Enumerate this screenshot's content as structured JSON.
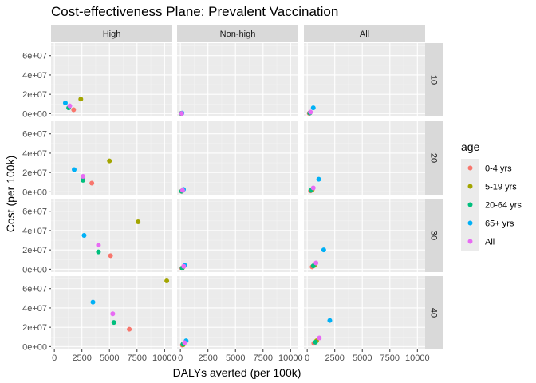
{
  "title": "Cost-effectiveness Plane: Prevalent Vaccination",
  "xlabel": "DALYs averted (per 100k)",
  "ylabel": "Cost (per 100k)",
  "legend": {
    "title": "age",
    "items": [
      {
        "label": "0-4 yrs",
        "color": "#F8766D"
      },
      {
        "label": "5-19 yrs",
        "color": "#A3A500"
      },
      {
        "label": "20-64 yrs",
        "color": "#00BF7D"
      },
      {
        "label": "65+ yrs",
        "color": "#00B0F6"
      },
      {
        "label": "All",
        "color": "#E76BF3"
      }
    ]
  },
  "chart_data": {
    "type": "scatter",
    "facet_columns": [
      "High",
      "Non-high",
      "All"
    ],
    "facet_rows": [
      "10",
      "20",
      "30",
      "40"
    ],
    "xlim": [
      -300,
      10700
    ],
    "ylim": [
      -3000000,
      73000000
    ],
    "x_ticks": [
      0,
      2500,
      5000,
      7500,
      10000
    ],
    "y_ticks": [
      0,
      20000000,
      40000000,
      60000000
    ],
    "y_tick_labels": [
      "0e+00",
      "2e+07",
      "4e+07",
      "6e+07"
    ],
    "grid": true,
    "legend_position": "right",
    "series": [
      {
        "name": "0-4 yrs",
        "color": "#F8766D",
        "points": [
          {
            "col": "High",
            "row": "10",
            "x": 1750,
            "y": 4000000
          },
          {
            "col": "Non-high",
            "row": "10",
            "x": 60,
            "y": 150000
          },
          {
            "col": "All",
            "row": "10",
            "x": 180,
            "y": 300000
          },
          {
            "col": "High",
            "row": "20",
            "x": 3400,
            "y": 9000000
          },
          {
            "col": "Non-high",
            "row": "20",
            "x": 100,
            "y": 500000
          },
          {
            "col": "All",
            "row": "20",
            "x": 300,
            "y": 1000000
          },
          {
            "col": "High",
            "row": "30",
            "x": 5100,
            "y": 14000000
          },
          {
            "col": "Non-high",
            "row": "30",
            "x": 130,
            "y": 1000000
          },
          {
            "col": "All",
            "row": "30",
            "x": 450,
            "y": 2500000
          },
          {
            "col": "High",
            "row": "40",
            "x": 6800,
            "y": 18000000
          },
          {
            "col": "Non-high",
            "row": "40",
            "x": 180,
            "y": 1500000
          },
          {
            "col": "All",
            "row": "40",
            "x": 600,
            "y": 3500000
          }
        ]
      },
      {
        "name": "5-19 yrs",
        "color": "#A3A500",
        "points": [
          {
            "col": "High",
            "row": "10",
            "x": 2400,
            "y": 15000000
          },
          {
            "col": "Non-high",
            "row": "10",
            "x": 100,
            "y": 300000
          },
          {
            "col": "All",
            "row": "10",
            "x": 250,
            "y": 900000
          },
          {
            "col": "High",
            "row": "20",
            "x": 5000,
            "y": 32000000
          },
          {
            "col": "Non-high",
            "row": "20",
            "x": 150,
            "y": 1000000
          },
          {
            "col": "All",
            "row": "20",
            "x": 450,
            "y": 2000000
          },
          {
            "col": "High",
            "row": "30",
            "x": 7600,
            "y": 49000000
          },
          {
            "col": "Non-high",
            "row": "30",
            "x": 200,
            "y": 1500000
          },
          {
            "col": "All",
            "row": "30",
            "x": 650,
            "y": 4000000
          },
          {
            "col": "High",
            "row": "40",
            "x": 10200,
            "y": 68000000
          },
          {
            "col": "Non-high",
            "row": "40",
            "x": 260,
            "y": 2000000
          },
          {
            "col": "All",
            "row": "40",
            "x": 850,
            "y": 6000000
          }
        ]
      },
      {
        "name": "20-64 yrs",
        "color": "#00BF7D",
        "points": [
          {
            "col": "High",
            "row": "10",
            "x": 1300,
            "y": 6000000
          },
          {
            "col": "Non-high",
            "row": "10",
            "x": 80,
            "y": 200000
          },
          {
            "col": "All",
            "row": "10",
            "x": 230,
            "y": 600000
          },
          {
            "col": "High",
            "row": "20",
            "x": 2600,
            "y": 12000000
          },
          {
            "col": "Non-high",
            "row": "20",
            "x": 120,
            "y": 600000
          },
          {
            "col": "All",
            "row": "20",
            "x": 350,
            "y": 1500000
          },
          {
            "col": "High",
            "row": "30",
            "x": 4000,
            "y": 18000000
          },
          {
            "col": "Non-high",
            "row": "30",
            "x": 170,
            "y": 1200000
          },
          {
            "col": "All",
            "row": "30",
            "x": 550,
            "y": 3500000
          },
          {
            "col": "High",
            "row": "40",
            "x": 5400,
            "y": 25000000
          },
          {
            "col": "Non-high",
            "row": "40",
            "x": 230,
            "y": 2500000
          },
          {
            "col": "All",
            "row": "40",
            "x": 750,
            "y": 4500000
          }
        ]
      },
      {
        "name": "65+ yrs",
        "color": "#00B0F6",
        "points": [
          {
            "col": "High",
            "row": "10",
            "x": 1000,
            "y": 11000000
          },
          {
            "col": "Non-high",
            "row": "10",
            "x": 150,
            "y": 500000
          },
          {
            "col": "All",
            "row": "10",
            "x": 550,
            "y": 6000000
          },
          {
            "col": "High",
            "row": "20",
            "x": 1800,
            "y": 23000000
          },
          {
            "col": "Non-high",
            "row": "20",
            "x": 280,
            "y": 2500000
          },
          {
            "col": "All",
            "row": "20",
            "x": 1050,
            "y": 13000000
          },
          {
            "col": "High",
            "row": "30",
            "x": 2700,
            "y": 35000000
          },
          {
            "col": "Non-high",
            "row": "30",
            "x": 400,
            "y": 4000000
          },
          {
            "col": "All",
            "row": "30",
            "x": 1500,
            "y": 20000000
          },
          {
            "col": "High",
            "row": "40",
            "x": 3500,
            "y": 46000000
          },
          {
            "col": "Non-high",
            "row": "40",
            "x": 520,
            "y": 6000000
          },
          {
            "col": "All",
            "row": "40",
            "x": 2050,
            "y": 27000000
          }
        ]
      },
      {
        "name": "All",
        "color": "#E76BF3",
        "points": [
          {
            "col": "High",
            "row": "10",
            "x": 1400,
            "y": 8000000
          },
          {
            "col": "Non-high",
            "row": "10",
            "x": 120,
            "y": 250000
          },
          {
            "col": "All",
            "row": "10",
            "x": 300,
            "y": 1500000
          },
          {
            "col": "High",
            "row": "20",
            "x": 2600,
            "y": 16000000
          },
          {
            "col": "Non-high",
            "row": "20",
            "x": 200,
            "y": 1500000
          },
          {
            "col": "All",
            "row": "20",
            "x": 550,
            "y": 4000000
          },
          {
            "col": "High",
            "row": "30",
            "x": 4000,
            "y": 25000000
          },
          {
            "col": "Non-high",
            "row": "30",
            "x": 300,
            "y": 3000000
          },
          {
            "col": "All",
            "row": "30",
            "x": 800,
            "y": 6500000
          },
          {
            "col": "High",
            "row": "40",
            "x": 5300,
            "y": 34000000
          },
          {
            "col": "Non-high",
            "row": "40",
            "x": 380,
            "y": 4000000
          },
          {
            "col": "All",
            "row": "40",
            "x": 1100,
            "y": 9000000
          }
        ]
      }
    ]
  }
}
